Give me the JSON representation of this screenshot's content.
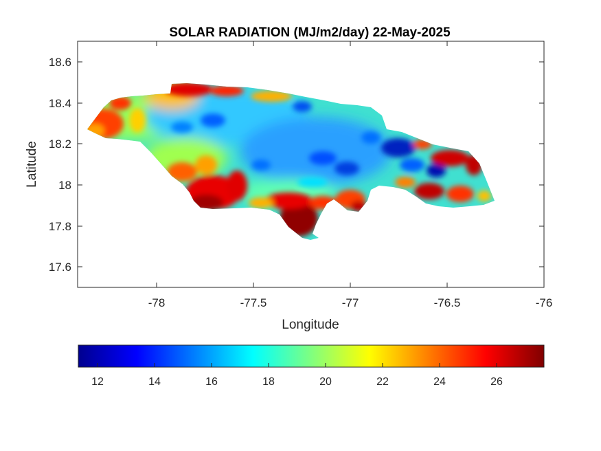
{
  "chart_data": {
    "type": "heatmap",
    "title": "SOLAR RADIATION (MJ/m2/day) 22-May-2025",
    "xlabel": "Longitude",
    "ylabel": "Latitude",
    "xlim": [
      -78.4,
      -76.0
    ],
    "ylim": [
      17.5,
      18.7
    ],
    "x_ticks": [
      -78,
      -77.5,
      -77,
      -76.5,
      -76
    ],
    "y_ticks": [
      17.6,
      17.8,
      18,
      18.2,
      18.4,
      18.6
    ],
    "x_tick_labels": [
      "-78",
      "-77.5",
      "-77",
      "-76.5",
      "-76"
    ],
    "y_tick_labels": [
      "17.6",
      "17.8",
      "18",
      "18.2",
      "18.4",
      "18.6"
    ],
    "grid": false,
    "colormap": "jet",
    "colorbar": {
      "orientation": "horizontal",
      "placement": "bottom",
      "range": [
        11.3,
        27.6
      ],
      "ticks": [
        12,
        14,
        16,
        18,
        20,
        22,
        24,
        26
      ],
      "tick_labels": [
        "12",
        "14",
        "16",
        "18",
        "20",
        "22",
        "24",
        "26"
      ]
    },
    "region": "Jamaica",
    "regional_pattern": [
      {
        "area": "west coast",
        "lon": -78.25,
        "lat": 18.3,
        "value": 25
      },
      {
        "area": "north-west coast",
        "lon": -77.85,
        "lat": 18.47,
        "value": 26
      },
      {
        "area": "central interior",
        "lon": -77.6,
        "lat": 18.25,
        "value": 17
      },
      {
        "area": "north-central",
        "lon": -77.4,
        "lat": 18.3,
        "value": 16
      },
      {
        "area": "south-west coast",
        "lon": -77.75,
        "lat": 17.92,
        "value": 26
      },
      {
        "area": "south-central coast",
        "lon": -77.25,
        "lat": 17.82,
        "value": 27
      },
      {
        "area": "south coast east",
        "lon": -77.05,
        "lat": 17.92,
        "value": 24
      },
      {
        "area": "eastern interior",
        "lon": -76.85,
        "lat": 18.15,
        "value": 14
      },
      {
        "area": "east",
        "lon": -76.55,
        "lat": 18.05,
        "value": 14
      },
      {
        "area": "east coast",
        "lon": -76.35,
        "lat": 18.0,
        "value": 25
      },
      {
        "area": "north-east coast",
        "lon": -76.55,
        "lat": 18.15,
        "value": 26
      }
    ]
  }
}
